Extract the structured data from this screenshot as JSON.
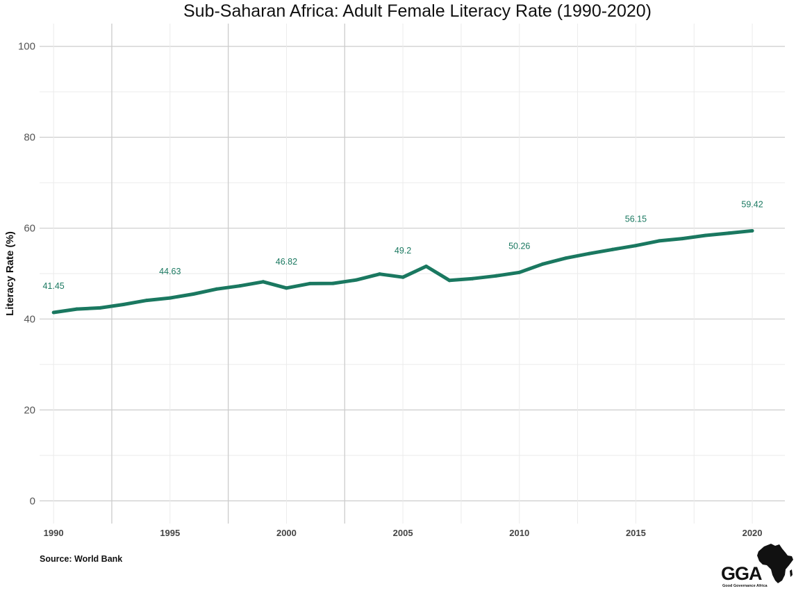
{
  "source_note": "Source: World Bank",
  "logo": {
    "text": "GGA",
    "subtext": "Good Governance Africa",
    "icon": "africa-map-icon"
  },
  "colors": {
    "line": "#1a7860",
    "label": "#1a7860",
    "grid_major": "#cccccc",
    "grid_minor": "#ebebeb"
  },
  "chart_data": {
    "type": "line",
    "title": "Sub-Saharan Africa: Adult Female Literacy Rate (1990-2020)",
    "xlabel": "",
    "ylabel": "Literacy Rate (%)",
    "xlim": [
      1989.4,
      2021.4
    ],
    "ylim": [
      -5,
      105
    ],
    "x_ticks": [
      1990,
      1995,
      2000,
      2005,
      2010,
      2015,
      2020
    ],
    "y_ticks": [
      0,
      20,
      40,
      60,
      80,
      100
    ],
    "grid": true,
    "legend": "none",
    "series": [
      {
        "x": [
          1990,
          1991,
          1992,
          1993,
          1994,
          1995,
          1996,
          1997,
          1998,
          1999,
          2000,
          2001,
          2002,
          2003,
          2004,
          2005,
          2006,
          2007,
          2008,
          2009,
          2010,
          2011,
          2012,
          2013,
          2014,
          2015,
          2016,
          2017,
          2018,
          2019,
          2020
        ],
        "values": [
          41.45,
          42.2,
          42.45,
          43.2,
          44.1,
          44.63,
          45.5,
          46.6,
          47.3,
          48.2,
          46.82,
          47.8,
          47.85,
          48.6,
          49.9,
          49.2,
          51.6,
          48.5,
          48.9,
          49.5,
          50.26,
          52.1,
          53.4,
          54.4,
          55.3,
          56.15,
          57.2,
          57.7,
          58.4,
          58.9,
          59.42
        ]
      }
    ],
    "data_labels": [
      {
        "x": 1990,
        "text": "41.45",
        "y": 41.45
      },
      {
        "x": 1995,
        "text": "44.63",
        "y": 44.63
      },
      {
        "x": 2000,
        "text": "46.82",
        "y": 46.82
      },
      {
        "x": 2005,
        "text": "49.2",
        "y": 49.2
      },
      {
        "x": 2010,
        "text": "50.26",
        "y": 50.26
      },
      {
        "x": 2015,
        "text": "56.15",
        "y": 56.15
      },
      {
        "x": 2020,
        "text": "59.42",
        "y": 59.42
      }
    ]
  }
}
